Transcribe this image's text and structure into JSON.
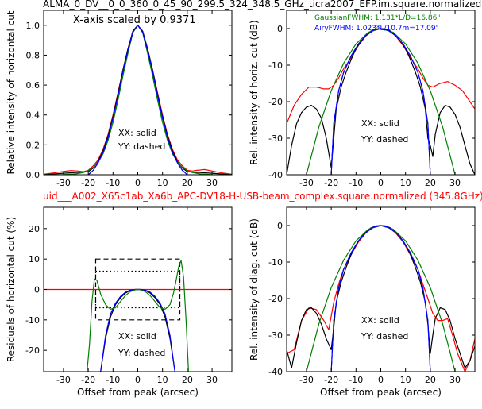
{
  "header": {
    "title": "ALMA_0_DV__0_0_360_0_45_90_299.5_324_348.5_GHz_ticra2007_EFP.im.square.normalized",
    "subtitle": "uid___A002_X65c1ab_Xa6b_APC-DV18-H-USB-beam_complex.square.normalized (345.8GHz)"
  },
  "colors": {
    "model_red": "#ff0000",
    "measured_black": "#000000",
    "gaussian_green": "#008000",
    "airy_blue": "#0000ff"
  },
  "chart_data": [
    {
      "type": "line",
      "panel": "top-left",
      "ylabel": "Relative intensity of horizontal cut",
      "xlim": [
        -38,
        38
      ],
      "ylim": [
        0,
        1.1
      ],
      "xticks": [
        "-30",
        "-20",
        "-10",
        "0",
        "10",
        "20",
        "30"
      ],
      "yticks": [
        "0.0",
        "0.2",
        "0.4",
        "0.6",
        "0.8",
        "1.0"
      ],
      "annotations": [
        "X-axis scaled by 0.9371",
        "XX: solid",
        "YY: dashed"
      ],
      "series": [
        {
          "color": "red",
          "x": [
            -38,
            -34,
            -30,
            -27,
            -24,
            -22,
            -20,
            -18,
            -16,
            -14,
            -12,
            -10,
            -8,
            -6,
            -4,
            -2,
            0,
            2,
            4,
            6,
            8,
            10,
            12,
            14,
            16,
            18,
            20,
            22,
            24,
            27,
            30,
            34,
            38
          ],
          "y": [
            0.003,
            0.012,
            0.022,
            0.028,
            0.025,
            0.02,
            0.03,
            0.06,
            0.1,
            0.17,
            0.27,
            0.4,
            0.55,
            0.7,
            0.84,
            0.96,
            1.0,
            0.96,
            0.84,
            0.7,
            0.55,
            0.4,
            0.27,
            0.17,
            0.1,
            0.06,
            0.03,
            0.025,
            0.03,
            0.035,
            0.025,
            0.012,
            0.003
          ]
        },
        {
          "color": "black",
          "x": [
            -38,
            -30,
            -25,
            -22,
            -20,
            -18,
            -16,
            -14,
            -12,
            -10,
            -8,
            -6,
            -4,
            -2,
            0,
            2,
            4,
            6,
            8,
            10,
            12,
            14,
            16,
            18,
            20,
            22,
            25,
            30,
            38
          ],
          "y": [
            0,
            0.01,
            0.015,
            0.018,
            0.02,
            0.045,
            0.09,
            0.16,
            0.26,
            0.39,
            0.54,
            0.7,
            0.84,
            0.96,
            1.0,
            0.96,
            0.84,
            0.7,
            0.54,
            0.39,
            0.26,
            0.16,
            0.09,
            0.045,
            0.02,
            0.018,
            0.015,
            0.01,
            0
          ]
        },
        {
          "color": "green",
          "x": [
            -38,
            -30,
            -25,
            -22,
            -20,
            -18,
            -16,
            -14,
            -12,
            -10,
            -8,
            -6,
            -4,
            -2,
            0,
            2,
            4,
            6,
            8,
            10,
            12,
            14,
            16,
            18,
            20,
            22,
            25,
            30,
            38
          ],
          "y": [
            0,
            0.001,
            0.006,
            0.015,
            0.027,
            0.05,
            0.085,
            0.14,
            0.23,
            0.35,
            0.5,
            0.66,
            0.81,
            0.95,
            1.0,
            0.95,
            0.81,
            0.66,
            0.5,
            0.35,
            0.23,
            0.14,
            0.085,
            0.05,
            0.027,
            0.015,
            0.006,
            0.001,
            0
          ]
        },
        {
          "color": "blue",
          "x": [
            -20,
            -18,
            -16,
            -14,
            -12,
            -10,
            -8,
            -6,
            -4,
            -2,
            0,
            2,
            4,
            6,
            8,
            10,
            12,
            14,
            16,
            18,
            20
          ],
          "y": [
            0,
            0.03,
            0.08,
            0.15,
            0.25,
            0.38,
            0.53,
            0.69,
            0.83,
            0.955,
            1.0,
            0.955,
            0.83,
            0.69,
            0.53,
            0.38,
            0.25,
            0.15,
            0.08,
            0.03,
            0
          ]
        }
      ]
    },
    {
      "type": "line",
      "panel": "top-right",
      "ylabel": "Rel. intensity of horiz. cut (dB)",
      "xlim": [
        -38,
        38
      ],
      "ylim": [
        -40,
        5
      ],
      "xticks": [
        "-30",
        "-20",
        "-10",
        "0",
        "10",
        "20",
        "30"
      ],
      "yticks": [
        "-40",
        "-30",
        "-20",
        "-10",
        "0"
      ],
      "annotations": [
        "GaussianFWHM: 1.131*L/D=16.86\"",
        "AiryFWHM: 1.023*L/10.7m=17.09\"",
        "XX: solid",
        "YY: dashed"
      ],
      "series": [
        {
          "color": "red",
          "x": [
            -38,
            -35,
            -32,
            -29,
            -26,
            -23,
            -21,
            -19,
            -17,
            -15,
            -12,
            -9,
            -6,
            -3,
            0,
            3,
            6,
            9,
            12,
            15,
            17,
            19,
            21,
            24,
            27,
            30,
            33,
            36,
            38
          ],
          "y": [
            -26,
            -21,
            -18,
            -16,
            -16,
            -16.5,
            -16.5,
            -15.5,
            -13.5,
            -11,
            -8,
            -4.6,
            -2,
            -0.5,
            0,
            -0.5,
            -2,
            -4.6,
            -8,
            -11,
            -13.5,
            -15.5,
            -16,
            -15,
            -14.5,
            -15.5,
            -17,
            -20,
            -22
          ]
        },
        {
          "color": "black",
          "x": [
            -38,
            -36,
            -34,
            -32,
            -30,
            -28,
            -26,
            -24,
            -22,
            -20,
            -19,
            -18,
            -16,
            -14,
            -12,
            -10,
            -8,
            -6,
            -4,
            -2,
            0,
            2,
            4,
            6,
            8,
            10,
            12,
            14,
            16,
            18,
            19,
            20,
            21,
            22,
            24,
            26,
            28,
            30,
            32,
            34,
            36,
            38
          ],
          "y": [
            -40,
            -32,
            -26,
            -23,
            -21.5,
            -21,
            -22,
            -24.5,
            -30,
            -38,
            -30,
            -22,
            -16,
            -12,
            -8.5,
            -5.5,
            -3.5,
            -1.8,
            -0.7,
            -0.1,
            0,
            -0.1,
            -0.7,
            -1.8,
            -3.5,
            -5.5,
            -8.5,
            -12,
            -16,
            -22,
            -30,
            -32,
            -35,
            -29,
            -23,
            -21,
            -21.5,
            -23.5,
            -27,
            -32,
            -37,
            -40
          ]
        },
        {
          "color": "green",
          "x": [
            -30,
            -25,
            -20,
            -15,
            -10,
            -5,
            0,
            5,
            10,
            15,
            20,
            25,
            30
          ],
          "y": [
            -40,
            -27,
            -17,
            -9.5,
            -4.2,
            -1,
            0,
            -1,
            -4.2,
            -9.5,
            -17,
            -27,
            -40
          ]
        },
        {
          "color": "blue",
          "x": [
            -20,
            -19,
            -17,
            -15,
            -12,
            -9,
            -6,
            -3,
            0,
            3,
            6,
            9,
            12,
            15,
            17,
            19,
            20
          ],
          "y": [
            -40,
            -26,
            -17,
            -12,
            -7.5,
            -4.2,
            -1.9,
            -0.45,
            0,
            -0.45,
            -1.9,
            -4.2,
            -7.5,
            -12,
            -17,
            -26,
            -40
          ]
        }
      ]
    },
    {
      "type": "line",
      "panel": "bottom-left",
      "xlabel": "Offset from peak (arcsec)",
      "ylabel": "Residuals of horizontal cut (%)",
      "xlim": [
        -38,
        38
      ],
      "ylim": [
        -27,
        27
      ],
      "xticks": [
        "-30",
        "-20",
        "-10",
        "0",
        "10",
        "20",
        "30"
      ],
      "yticks": [
        "-20",
        "-10",
        "0",
        "10",
        "20"
      ],
      "annotations": [
        "XX: solid",
        "YY: dashed"
      ],
      "box_dashed": {
        "x": [
          -17,
          17
        ],
        "y": [
          -10,
          10
        ]
      },
      "box_dotted": {
        "x": [
          -17,
          17
        ],
        "y": [
          -6,
          6
        ]
      },
      "series": [
        {
          "color": "red",
          "x": [
            -38,
            38
          ],
          "y": [
            0,
            0
          ]
        },
        {
          "color": "black",
          "x": [
            -15,
            -13,
            -11,
            -9,
            -7,
            -5,
            -3,
            -1,
            0,
            1,
            3,
            5,
            7,
            9,
            11,
            13,
            15
          ],
          "y": [
            -27,
            -16,
            -9,
            -5,
            -2.7,
            -1.2,
            -0.3,
            0,
            0,
            0,
            -0.3,
            -1.2,
            -2.7,
            -5,
            -9,
            -16,
            -27
          ]
        },
        {
          "color": "blue",
          "x": [
            -15,
            -13,
            -11,
            -9,
            -7,
            -5,
            -3,
            -1,
            0,
            1,
            3,
            5,
            7,
            9,
            11,
            13,
            15
          ],
          "y": [
            -27,
            -15,
            -8,
            -4.5,
            -2.3,
            -0.9,
            -0.2,
            0,
            0,
            0,
            -0.2,
            -0.9,
            -2.3,
            -4.5,
            -8,
            -15,
            -27
          ]
        },
        {
          "color": "green",
          "x": [
            -20.5,
            -19.5,
            -18.5,
            -17.5,
            -16.5,
            -15,
            -13,
            -11,
            -9,
            -7,
            -5,
            -3,
            -1,
            0,
            1,
            3,
            5,
            7,
            9,
            11,
            13,
            14.5,
            15.5,
            16.5,
            17.5,
            18.5,
            19.5,
            20.5
          ],
          "y": [
            -27,
            -18,
            -4,
            3.5,
            3,
            -1.5,
            -5,
            -6.5,
            -6,
            -4,
            -2,
            -0.7,
            -0.1,
            0,
            -0.1,
            -0.7,
            -2,
            -4,
            -6,
            -6.5,
            -5,
            -1,
            3,
            7.5,
            9.5,
            4,
            -10,
            -27
          ]
        }
      ]
    },
    {
      "type": "line",
      "panel": "bottom-right",
      "xlabel": "Offset from peak (arcsec)",
      "ylabel": "Rel. intensity of diag. cut (dB)",
      "xlim": [
        -38,
        38
      ],
      "ylim": [
        -40,
        5
      ],
      "xticks": [
        "-30",
        "-20",
        "-10",
        "0",
        "10",
        "20",
        "30"
      ],
      "yticks": [
        "-40",
        "-30",
        "-20",
        "-10",
        "0"
      ],
      "annotations": [
        "XX: solid",
        "YY: dashed"
      ],
      "series": [
        {
          "color": "red",
          "x": [
            -38,
            -35,
            -32,
            -29,
            -26,
            -23,
            -21,
            -19,
            -17,
            -15,
            -12,
            -9,
            -6,
            -3,
            0,
            3,
            6,
            9,
            12,
            15,
            17,
            19,
            21,
            23,
            25,
            27,
            29,
            31,
            34,
            36,
            38
          ],
          "y": [
            -35,
            -34,
            -26,
            -22.5,
            -23,
            -26,
            -28.5,
            -21,
            -16,
            -12,
            -8,
            -4.5,
            -2,
            -0.5,
            0,
            -0.5,
            -2,
            -4.5,
            -8,
            -12,
            -16,
            -20,
            -24,
            -26,
            -26,
            -25.5,
            -30,
            -35,
            -40,
            -37,
            -31
          ]
        },
        {
          "color": "black",
          "x": [
            -38,
            -36,
            -34,
            -32,
            -30,
            -28,
            -26,
            -24,
            -22,
            -20,
            -19,
            -18,
            -16,
            -14,
            -12,
            -10,
            -8,
            -6,
            -4,
            -2,
            0,
            2,
            4,
            6,
            8,
            10,
            12,
            14,
            16,
            18,
            19,
            20,
            21,
            22,
            24,
            26,
            28,
            30,
            32,
            34,
            36,
            38
          ],
          "y": [
            -34,
            -39,
            -32,
            -26,
            -23,
            -22.5,
            -24,
            -27,
            -31,
            -34,
            -28,
            -21,
            -15.5,
            -11.5,
            -8,
            -5.3,
            -3.3,
            -1.7,
            -0.65,
            -0.1,
            0,
            -0.1,
            -0.65,
            -1.7,
            -3.3,
            -5.3,
            -8,
            -11.5,
            -15.5,
            -21,
            -27,
            -35,
            -30,
            -25.5,
            -22.5,
            -23,
            -26,
            -31,
            -35,
            -39,
            -37,
            -33
          ]
        },
        {
          "color": "green",
          "x": [
            -30,
            -25,
            -20,
            -15,
            -10,
            -5,
            0,
            5,
            10,
            15,
            20,
            25,
            30
          ],
          "y": [
            -40,
            -27,
            -17,
            -9.5,
            -4.2,
            -1,
            0,
            -1,
            -4.2,
            -9.5,
            -17,
            -27,
            -40
          ]
        },
        {
          "color": "blue",
          "x": [
            -20,
            -19,
            -17,
            -15,
            -12,
            -9,
            -6,
            -3,
            0,
            3,
            6,
            9,
            12,
            15,
            17,
            19,
            20
          ],
          "y": [
            -40,
            -26,
            -17,
            -12,
            -7.5,
            -4.2,
            -1.9,
            -0.45,
            0,
            -0.45,
            -1.9,
            -4.2,
            -7.5,
            -12,
            -17,
            -26,
            -40
          ]
        }
      ]
    }
  ]
}
